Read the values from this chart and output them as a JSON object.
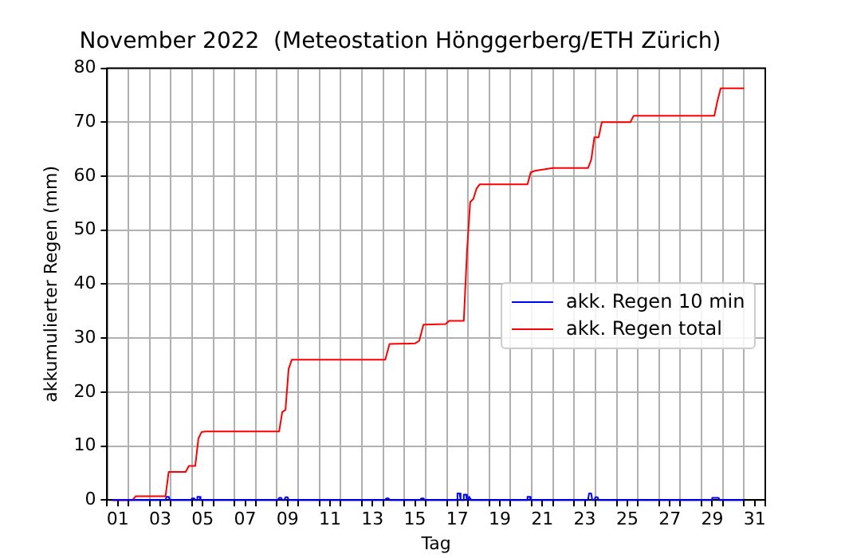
{
  "chart_data": {
    "type": "line",
    "title": "November 2022  (Meteostation Hönggerberg/ETH Zürich)",
    "xlabel": "Tag",
    "ylabel": "akkumulierter Regen (mm)",
    "xlim": [
      0.5,
      31.5
    ],
    "xticks": [
      {
        "value": 0.5,
        "label": null
      },
      {
        "value": 1,
        "label": "01"
      },
      {
        "value": 1.5,
        "label": null
      },
      {
        "value": 2.5,
        "label": null
      },
      {
        "value": 3,
        "label": "03"
      },
      {
        "value": 3.5,
        "label": null
      },
      {
        "value": 4.5,
        "label": null
      },
      {
        "value": 5,
        "label": "05"
      },
      {
        "value": 5.5,
        "label": null
      },
      {
        "value": 6.5,
        "label": null
      },
      {
        "value": 7,
        "label": "07"
      },
      {
        "value": 7.5,
        "label": null
      },
      {
        "value": 8.5,
        "label": null
      },
      {
        "value": 9,
        "label": "09"
      },
      {
        "value": 9.5,
        "label": null
      },
      {
        "value": 10.5,
        "label": null
      },
      {
        "value": 11,
        "label": "11"
      },
      {
        "value": 11.5,
        "label": null
      },
      {
        "value": 12.5,
        "label": null
      },
      {
        "value": 13,
        "label": "13"
      },
      {
        "value": 13.5,
        "label": null
      },
      {
        "value": 14.5,
        "label": null
      },
      {
        "value": 15,
        "label": "15"
      },
      {
        "value": 15.5,
        "label": null
      },
      {
        "value": 16.5,
        "label": null
      },
      {
        "value": 17,
        "label": "17"
      },
      {
        "value": 17.5,
        "label": null
      },
      {
        "value": 18.5,
        "label": null
      },
      {
        "value": 19,
        "label": "19"
      },
      {
        "value": 19.5,
        "label": null
      },
      {
        "value": 20.5,
        "label": null
      },
      {
        "value": 21,
        "label": "21"
      },
      {
        "value": 21.5,
        "label": null
      },
      {
        "value": 22.5,
        "label": null
      },
      {
        "value": 23,
        "label": "23"
      },
      {
        "value": 23.5,
        "label": null
      },
      {
        "value": 24.5,
        "label": null
      },
      {
        "value": 25,
        "label": "25"
      },
      {
        "value": 25.5,
        "label": null
      },
      {
        "value": 26.5,
        "label": null
      },
      {
        "value": 27,
        "label": "27"
      },
      {
        "value": 27.5,
        "label": null
      },
      {
        "value": 28.5,
        "label": null
      },
      {
        "value": 29,
        "label": "29"
      },
      {
        "value": 29.5,
        "label": null
      },
      {
        "value": 30.5,
        "label": null
      },
      {
        "value": 31,
        "label": "31"
      },
      {
        "value": 31.5,
        "label": null
      }
    ],
    "ylim": [
      0,
      80
    ],
    "yticks": [
      0,
      10,
      20,
      30,
      40,
      50,
      60,
      70,
      80
    ],
    "grid": true,
    "legend": "right",
    "marker": "none",
    "line_style": "solid",
    "series": [
      {
        "name": "akk. Regen 10 min",
        "color": "#0000ff",
        "x": [
          0.75,
          3.25,
          3.3,
          3.4,
          3.45,
          4.45,
          4.5,
          4.6,
          4.65,
          4.7,
          4.75,
          4.85,
          4.9,
          8.55,
          8.6,
          8.7,
          8.75,
          8.85,
          8.9,
          9.0,
          9.05,
          13.6,
          13.65,
          13.75,
          13.8,
          15.25,
          15.3,
          15.4,
          15.45,
          16.95,
          17.0,
          17.1,
          17.15,
          17.25,
          17.3,
          17.4,
          17.45,
          17.5,
          17.55,
          17.6,
          17.65,
          20.25,
          20.3,
          20.4,
          20.45,
          23.15,
          23.2,
          23.3,
          23.35,
          23.45,
          23.5,
          23.6,
          23.65,
          28.95,
          29.0,
          29.3,
          29.35,
          30.5
        ],
        "values": [
          0,
          0,
          0.6,
          0.6,
          0,
          0,
          0.3,
          0.3,
          0,
          0,
          0.6,
          0.6,
          0,
          0,
          0.4,
          0.4,
          0,
          0,
          0.5,
          0.5,
          0,
          0,
          0.3,
          0.3,
          0,
          0,
          0.3,
          0.3,
          0,
          0,
          1.2,
          1.2,
          0,
          0,
          1.0,
          1.0,
          0,
          0,
          0.6,
          0.6,
          0,
          0,
          0.6,
          0.6,
          0,
          0,
          1.2,
          1.2,
          0,
          0,
          0.5,
          0.5,
          0,
          0,
          0.4,
          0.4,
          0,
          0
        ]
      },
      {
        "name": "akk. Regen total",
        "color": "#ff0000",
        "x": [
          0.75,
          1.7,
          1.85,
          3.25,
          3.4,
          4.2,
          4.35,
          4.65,
          4.8,
          4.95,
          5.15,
          8.6,
          8.75,
          8.9,
          9.05,
          9.2,
          13.6,
          13.8,
          15.0,
          15.2,
          15.4,
          16.45,
          16.6,
          17.3,
          17.45,
          17.6,
          17.75,
          17.9,
          18.05,
          20.3,
          20.45,
          20.65,
          21.5,
          23.15,
          23.3,
          23.45,
          23.65,
          23.8,
          25.15,
          25.3,
          29.1,
          29.25,
          29.4,
          30.5
        ],
        "values": [
          0,
          0,
          0.7,
          0.7,
          5.2,
          5.2,
          6.3,
          6.3,
          11.4,
          12.6,
          12.7,
          12.7,
          16.3,
          16.7,
          24.3,
          26.0,
          26.0,
          28.9,
          29.0,
          29.5,
          32.5,
          32.6,
          33.2,
          33.2,
          46,
          55.2,
          55.8,
          57.7,
          58.5,
          58.5,
          60.7,
          61.0,
          61.5,
          61.5,
          63,
          67.2,
          67.2,
          70.0,
          70.0,
          71.2,
          71.2,
          74,
          76.3,
          76.3
        ]
      }
    ]
  }
}
